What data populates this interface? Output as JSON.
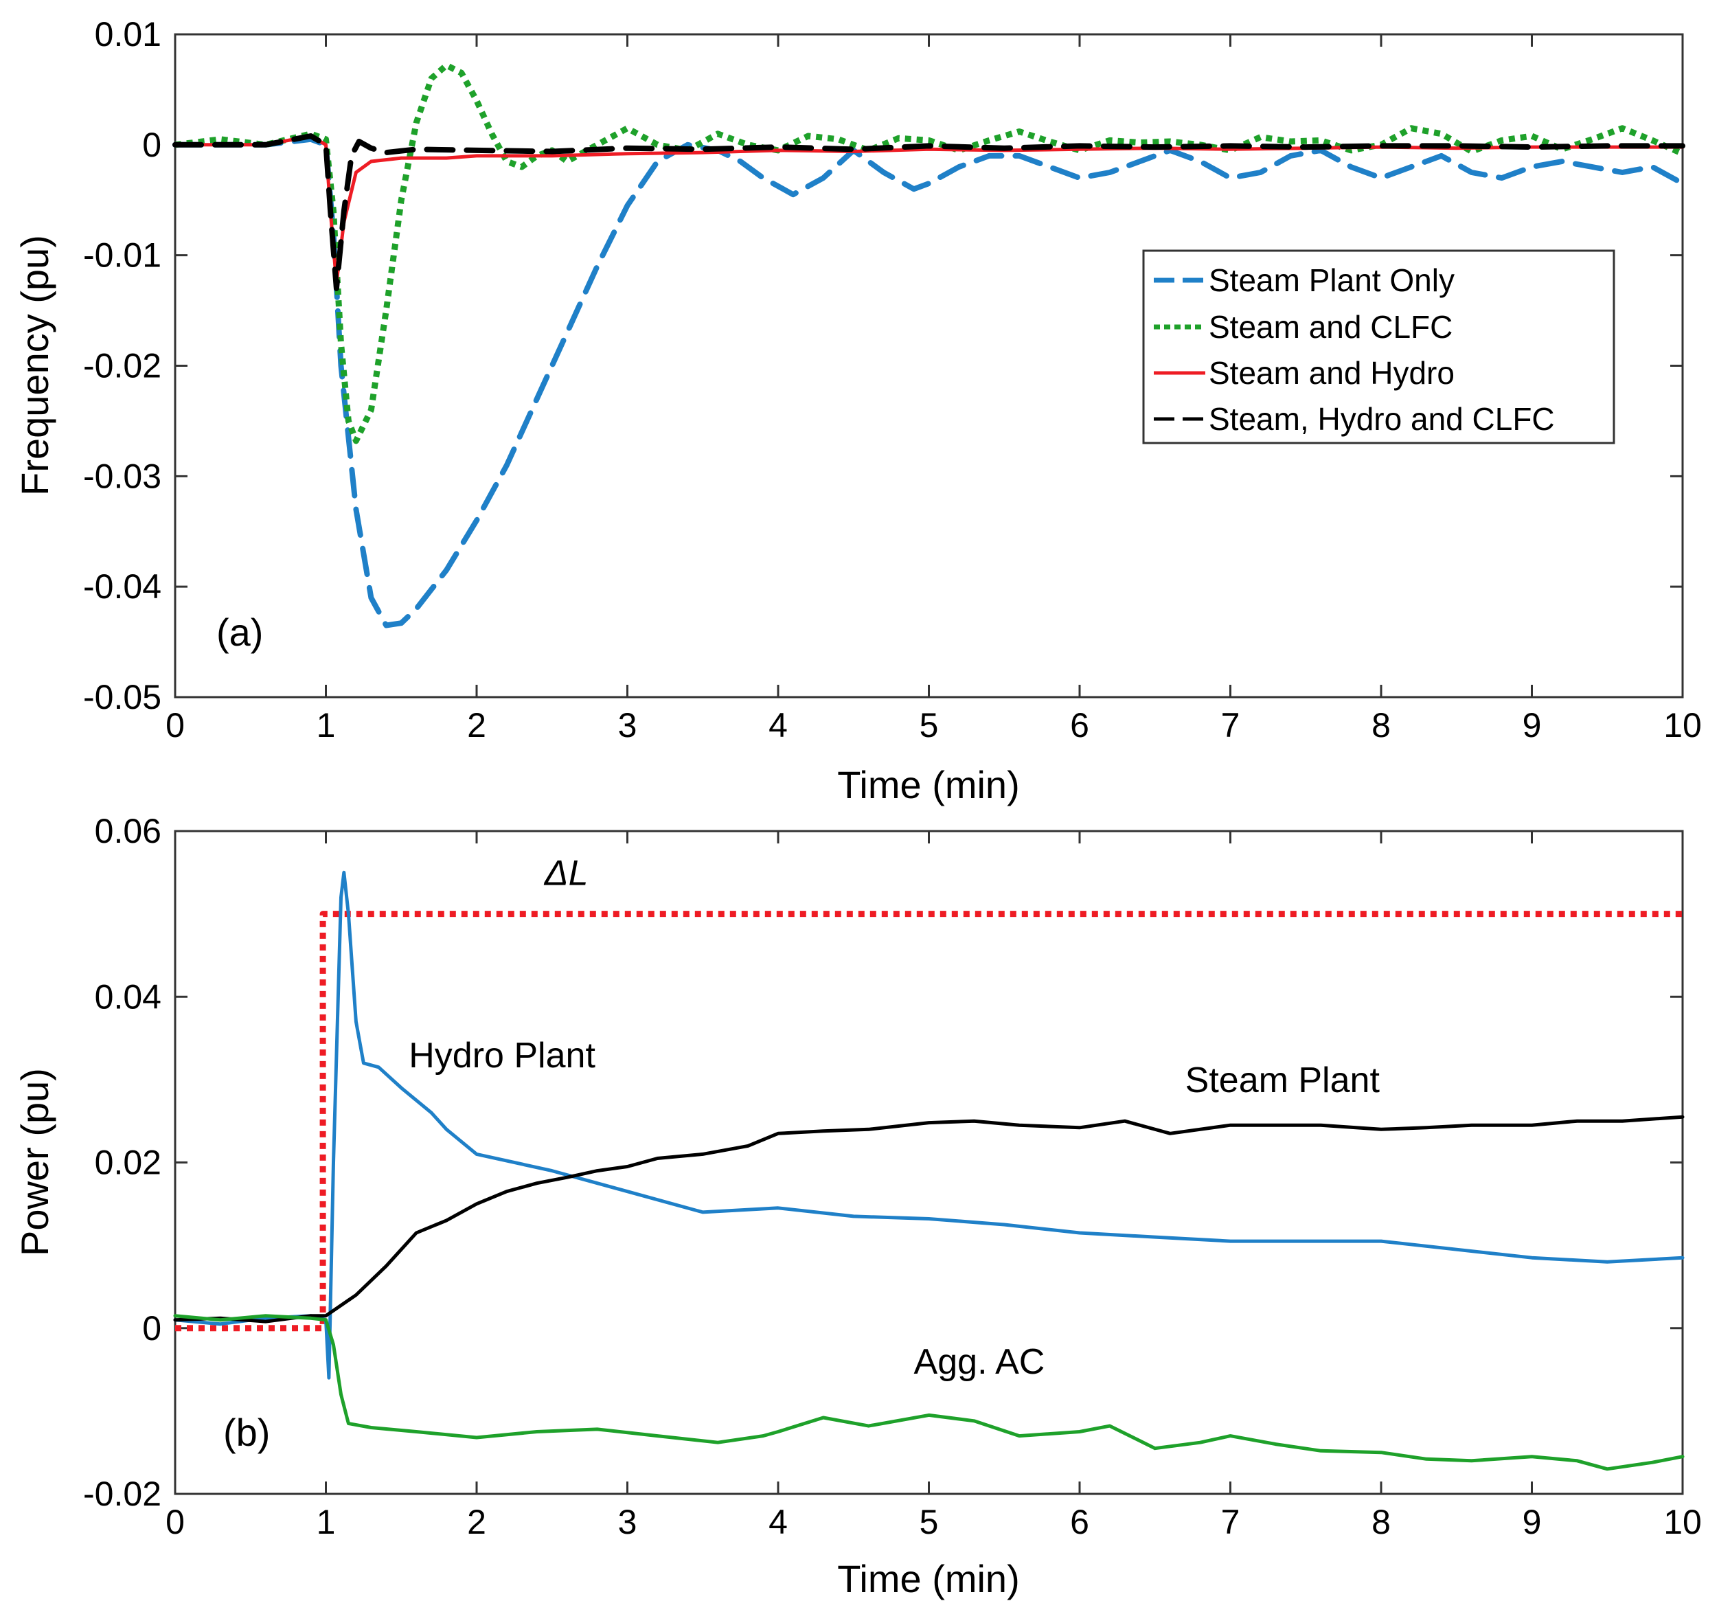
{
  "chart_data": [
    {
      "type": "line",
      "panel_label": "(a)",
      "xlabel": "Time (min)",
      "ylabel": "Frequency (pu)",
      "xlim": [
        0,
        10
      ],
      "ylim": [
        -0.05,
        0.01
      ],
      "xticks": [
        0,
        1,
        2,
        3,
        4,
        5,
        6,
        7,
        8,
        9,
        10
      ],
      "yticks": [
        0.01,
        0,
        -0.01,
        -0.02,
        -0.03,
        -0.04,
        -0.05
      ],
      "xtick_labels": [
        "0",
        "1",
        "2",
        "3",
        "4",
        "5",
        "6",
        "7",
        "8",
        "9",
        "10"
      ],
      "ytick_labels": [
        "0.01",
        "0",
        "-0.01",
        "-0.02",
        "-0.03",
        "-0.04",
        "-0.05"
      ],
      "legend_position": "top-right",
      "series": [
        {
          "name": "Steam Plant Only",
          "color": "#1f80c8",
          "style": "dashed",
          "x": [
            0,
            0.3,
            0.6,
            0.9,
            1.0,
            1.05,
            1.1,
            1.2,
            1.3,
            1.4,
            1.5,
            1.6,
            1.8,
            2.0,
            2.2,
            2.4,
            2.6,
            2.8,
            3.0,
            3.2,
            3.4,
            3.6,
            3.75,
            3.9,
            4.1,
            4.3,
            4.5,
            4.7,
            4.9,
            5.0,
            5.2,
            5.4,
            5.6,
            5.8,
            6.0,
            6.2,
            6.4,
            6.6,
            6.8,
            7.0,
            7.2,
            7.4,
            7.6,
            7.8,
            8.0,
            8.2,
            8.4,
            8.6,
            8.8,
            9.0,
            9.2,
            9.4,
            9.6,
            9.8,
            10.0
          ],
          "values": [
            0,
            0,
            0,
            0.0005,
            0,
            -0.008,
            -0.02,
            -0.033,
            -0.041,
            -0.0435,
            -0.0433,
            -0.042,
            -0.0385,
            -0.034,
            -0.029,
            -0.023,
            -0.017,
            -0.011,
            -0.0055,
            -0.0015,
            0,
            -0.0005,
            -0.0015,
            -0.003,
            -0.0045,
            -0.003,
            -0.0005,
            -0.0025,
            -0.004,
            -0.0035,
            -0.002,
            -0.001,
            -0.001,
            -0.002,
            -0.003,
            -0.0025,
            -0.0015,
            -0.0005,
            -0.0015,
            -0.003,
            -0.0025,
            -0.001,
            -0.0005,
            -0.002,
            -0.003,
            -0.002,
            -0.001,
            -0.0025,
            -0.003,
            -0.002,
            -0.0015,
            -0.002,
            -0.0025,
            -0.002,
            -0.0035
          ]
        },
        {
          "name": "Steam and CLFC",
          "color": "#1ea12a",
          "style": "dotted",
          "x": [
            0,
            0.3,
            0.6,
            0.9,
            1.0,
            1.05,
            1.1,
            1.15,
            1.2,
            1.3,
            1.4,
            1.5,
            1.6,
            1.7,
            1.8,
            1.9,
            2.0,
            2.1,
            2.2,
            2.3,
            2.4,
            2.5,
            2.6,
            2.8,
            3.0,
            3.2,
            3.4,
            3.6,
            3.8,
            4.0,
            4.2,
            4.4,
            4.6,
            4.8,
            5.0,
            5.2,
            5.4,
            5.6,
            5.8,
            6.0,
            6.2,
            6.4,
            6.6,
            6.8,
            7.0,
            7.2,
            7.4,
            7.6,
            7.8,
            8.0,
            8.2,
            8.4,
            8.6,
            8.8,
            9.0,
            9.2,
            9.4,
            9.6,
            9.8,
            10.0
          ],
          "values": [
            0,
            0.0005,
            0,
            0.001,
            0.0005,
            -0.006,
            -0.018,
            -0.025,
            -0.0268,
            -0.024,
            -0.015,
            -0.005,
            0.002,
            0.006,
            0.0072,
            0.0065,
            0.004,
            0.001,
            -0.0015,
            -0.002,
            -0.001,
            -0.0005,
            -0.0015,
            0,
            0.0015,
            0,
            -0.0005,
            0.001,
            0,
            -0.0005,
            0.0008,
            0.0005,
            -0.0005,
            0.0006,
            0.0004,
            -0.0005,
            0.0004,
            0.0012,
            0.0003,
            -0.0005,
            0.0004,
            0.0002,
            0.0003,
            0,
            -0.0005,
            0.0007,
            0.0003,
            0.0004,
            -0.0005,
            0,
            0.0015,
            0.001,
            -0.0006,
            0.0004,
            0.0008,
            -0.0004,
            0.0005,
            0.0015,
            0.0004,
            -0.0008
          ]
        },
        {
          "name": "Steam and Hydro",
          "color": "#ee1c24",
          "style": "solid",
          "x": [
            0,
            0.3,
            0.6,
            0.9,
            1.0,
            1.03,
            1.07,
            1.12,
            1.2,
            1.3,
            1.5,
            1.8,
            2.0,
            2.5,
            3.0,
            3.5,
            4.0,
            4.5,
            5.0,
            5.5,
            6.0,
            6.5,
            7.0,
            7.5,
            8.0,
            8.5,
            9.0,
            9.5,
            10.0
          ],
          "values": [
            0,
            0,
            0,
            0.0008,
            0,
            -0.006,
            -0.0125,
            -0.007,
            -0.0025,
            -0.0015,
            -0.0012,
            -0.0012,
            -0.001,
            -0.001,
            -0.0008,
            -0.0007,
            -0.0005,
            -0.0006,
            -0.0004,
            -0.0005,
            -0.0004,
            -0.0003,
            -0.0004,
            -0.0003,
            -0.0002,
            -0.0003,
            -0.0002,
            -0.0002,
            -0.0002
          ]
        },
        {
          "name": "Steam, Hydro and CLFC",
          "color": "#000000",
          "style": "dashed",
          "x": [
            0,
            0.3,
            0.6,
            0.9,
            1.0,
            1.03,
            1.07,
            1.12,
            1.17,
            1.22,
            1.3,
            1.4,
            1.6,
            2.0,
            2.5,
            3.0,
            3.5,
            4.0,
            4.5,
            5.0,
            5.5,
            6.0,
            6.5,
            7.0,
            7.5,
            8.0,
            8.5,
            9.0,
            9.5,
            10.0
          ],
          "values": [
            0,
            0,
            0,
            0.0008,
            0,
            -0.006,
            -0.013,
            -0.006,
            -0.001,
            0.0003,
            -0.0003,
            -0.0007,
            -0.0004,
            -0.0005,
            -0.0006,
            -0.0003,
            -0.0004,
            -0.0002,
            -0.0004,
            -0.0001,
            -0.0003,
            -0.0001,
            -0.0002,
            -0.0001,
            -0.0002,
            -0.0001,
            -0.0001,
            -0.0002,
            -0.0001,
            -0.0001
          ]
        }
      ]
    },
    {
      "type": "line",
      "panel_label": "(b)",
      "xlabel": "Time (min)",
      "ylabel": "Power (pu)",
      "xlim": [
        0,
        10
      ],
      "ylim": [
        -0.02,
        0.06
      ],
      "xticks": [
        0,
        1,
        2,
        3,
        4,
        5,
        6,
        7,
        8,
        9,
        10
      ],
      "yticks": [
        0.06,
        0.04,
        0.02,
        0,
        -0.02
      ],
      "xtick_labels": [
        "0",
        "1",
        "2",
        "3",
        "4",
        "5",
        "6",
        "7",
        "8",
        "9",
        "10"
      ],
      "ytick_labels": [
        "0.06",
        "0.04",
        "0.02",
        "0",
        "-0.02"
      ],
      "annotations": [
        {
          "text": "ΔL",
          "x": 2.45,
          "y": 0.0535
        },
        {
          "text": "Hydro Plant",
          "x": 1.55,
          "y": 0.0315
        },
        {
          "text": "Steam Plant",
          "x": 6.7,
          "y": 0.0285
        },
        {
          "text": "Agg. AC",
          "x": 4.9,
          "y": -0.0055
        }
      ],
      "series": [
        {
          "name": "ΔL",
          "color": "#ee1c24",
          "style": "dotted",
          "x": [
            0,
            0.98,
            0.98,
            10
          ],
          "values": [
            0,
            0,
            0.05,
            0.05
          ]
        },
        {
          "name": "Hydro Plant",
          "color": "#1f80c8",
          "style": "solid",
          "x": [
            0,
            0.3,
            0.6,
            0.9,
            1.0,
            1.02,
            1.05,
            1.1,
            1.12,
            1.15,
            1.2,
            1.25,
            1.35,
            1.5,
            1.7,
            1.8,
            2.0,
            2.5,
            3.0,
            3.5,
            4.0,
            4.5,
            5.0,
            5.5,
            6.0,
            6.5,
            7.0,
            7.5,
            8.0,
            8.5,
            9.0,
            9.5,
            10.0
          ],
          "values": [
            0.001,
            0.0005,
            0.0012,
            0.0015,
            0.001,
            -0.006,
            0.02,
            0.052,
            0.055,
            0.05,
            0.037,
            0.032,
            0.0315,
            0.029,
            0.026,
            0.024,
            0.021,
            0.019,
            0.0165,
            0.014,
            0.0145,
            0.0135,
            0.0132,
            0.0125,
            0.0115,
            0.011,
            0.0105,
            0.0105,
            0.0105,
            0.0095,
            0.0085,
            0.008,
            0.0085
          ]
        },
        {
          "name": "Steam Plant",
          "color": "#000000",
          "style": "solid",
          "x": [
            0,
            0.3,
            0.6,
            0.9,
            1.0,
            1.2,
            1.4,
            1.6,
            1.8,
            2.0,
            2.2,
            2.4,
            2.6,
            2.8,
            3.0,
            3.2,
            3.5,
            3.8,
            4.0,
            4.3,
            4.6,
            5.0,
            5.3,
            5.6,
            6.0,
            6.3,
            6.6,
            7.0,
            7.3,
            7.6,
            8.0,
            8.3,
            8.6,
            9.0,
            9.3,
            9.6,
            10.0
          ],
          "values": [
            0.001,
            0.0012,
            0.0008,
            0.0015,
            0.0015,
            0.004,
            0.0075,
            0.0115,
            0.013,
            0.015,
            0.0165,
            0.0175,
            0.0182,
            0.019,
            0.0195,
            0.0205,
            0.021,
            0.022,
            0.0235,
            0.0238,
            0.024,
            0.0248,
            0.025,
            0.0245,
            0.0242,
            0.025,
            0.0235,
            0.0245,
            0.0245,
            0.0245,
            0.024,
            0.0242,
            0.0245,
            0.0245,
            0.025,
            0.025,
            0.0255
          ]
        },
        {
          "name": "Agg. AC",
          "color": "#1ea12a",
          "style": "solid",
          "x": [
            0,
            0.3,
            0.6,
            0.9,
            1.0,
            1.05,
            1.1,
            1.15,
            1.3,
            1.6,
            2.0,
            2.4,
            2.8,
            3.2,
            3.6,
            3.9,
            4.0,
            4.3,
            4.6,
            5.0,
            5.3,
            5.6,
            6.0,
            6.2,
            6.5,
            6.8,
            7.0,
            7.3,
            7.6,
            8.0,
            8.3,
            8.6,
            9.0,
            9.3,
            9.5,
            9.8,
            10.0
          ],
          "values": [
            0.0015,
            0.001,
            0.0015,
            0.0012,
            0.001,
            -0.002,
            -0.008,
            -0.0115,
            -0.012,
            -0.0125,
            -0.0132,
            -0.0125,
            -0.0122,
            -0.013,
            -0.0138,
            -0.013,
            -0.0125,
            -0.0108,
            -0.0118,
            -0.0105,
            -0.0112,
            -0.013,
            -0.0125,
            -0.0118,
            -0.0145,
            -0.0138,
            -0.013,
            -0.014,
            -0.0148,
            -0.015,
            -0.0158,
            -0.016,
            -0.0155,
            -0.016,
            -0.017,
            -0.0162,
            -0.0155
          ]
        }
      ]
    }
  ]
}
